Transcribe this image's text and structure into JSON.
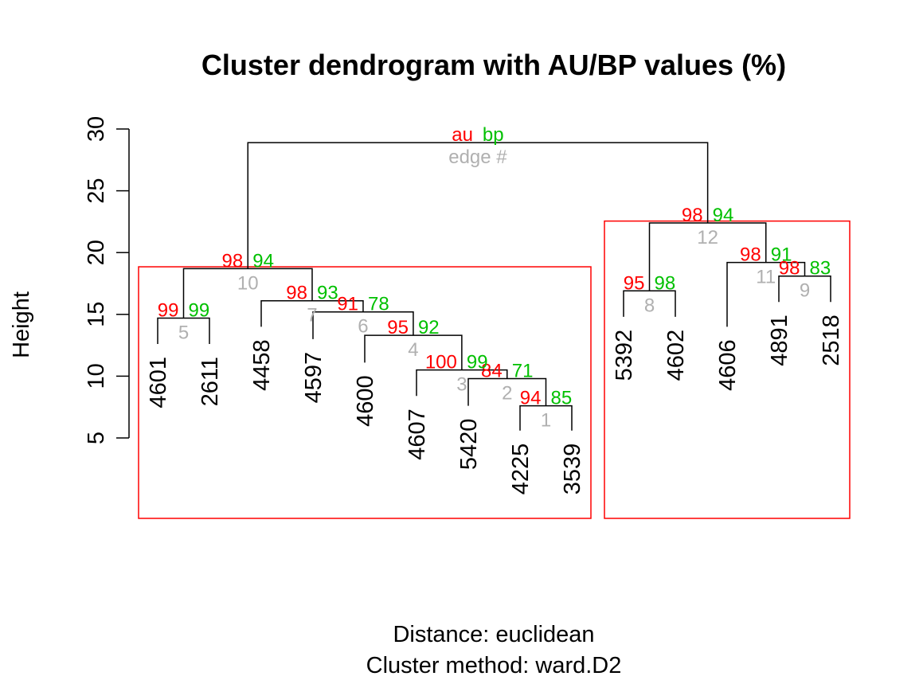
{
  "chart_data": {
    "type": "dendrogram",
    "title": "Cluster dendrogram with AU/BP values (%)",
    "ylabel": "Height",
    "ylim": [
      5,
      30
    ],
    "yticks": [
      5,
      10,
      15,
      20,
      25,
      30
    ],
    "subtitle_lines": [
      "Distance:  euclidean",
      "Cluster method: ward.D2"
    ],
    "legend": {
      "au": "au",
      "bp": "bp",
      "edge": "edge #"
    },
    "colors": {
      "au": "#ff0000",
      "bp": "#00c000",
      "edge": "#b0b0b0",
      "rect": "#ff0000",
      "lines": "#000000"
    },
    "leaves": [
      "4601",
      "2611",
      "4458",
      "4597",
      "4600",
      "4607",
      "5420",
      "4225",
      "3539",
      "5392",
      "4602",
      "4606",
      "4891",
      "2518"
    ],
    "leaf_heights": [
      12.6,
      12.6,
      14.0,
      13.0,
      11.1,
      8.4,
      7.6,
      5.6,
      5.6,
      14.8,
      14.8,
      14.0,
      16.0,
      16.0
    ],
    "merges": [
      {
        "edge": "1",
        "left": "L7",
        "right": "L8",
        "height": 7.6,
        "au": "94",
        "bp": "85"
      },
      {
        "edge": "2",
        "left": "L6",
        "right": "N1",
        "height": 9.8,
        "au": "84",
        "bp": "71"
      },
      {
        "edge": "3",
        "left": "L5",
        "right": "N2",
        "height": 10.5,
        "au": "100",
        "bp": "99"
      },
      {
        "edge": "4",
        "left": "L4",
        "right": "N3",
        "height": 13.3,
        "au": "95",
        "bp": "92"
      },
      {
        "edge": "5",
        "left": "L0",
        "right": "L1",
        "height": 14.7,
        "au": "99",
        "bp": "99"
      },
      {
        "edge": "6",
        "left": "L3",
        "right": "N4",
        "height": 15.2,
        "au": "91",
        "bp": "78"
      },
      {
        "edge": "7",
        "left": "L2",
        "right": "N6",
        "height": 16.1,
        "au": "98",
        "bp": "93"
      },
      {
        "edge": "8",
        "left": "L9",
        "right": "L10",
        "height": 16.9,
        "au": "95",
        "bp": "98"
      },
      {
        "edge": "9",
        "left": "L12",
        "right": "L13",
        "height": 18.1,
        "au": "98",
        "bp": "83"
      },
      {
        "edge": "10",
        "left": "N5",
        "right": "N7",
        "height": 18.7,
        "au": "98",
        "bp": "94"
      },
      {
        "edge": "11",
        "left": "L11",
        "right": "N9",
        "height": 19.2,
        "au": "98",
        "bp": "91"
      },
      {
        "edge": "12",
        "left": "N8",
        "right": "N11",
        "height": 22.4,
        "au": "98",
        "bp": "94"
      },
      {
        "edge": "",
        "left": "N10",
        "right": "N12",
        "height": 28.9,
        "au": "au",
        "bp": "bp"
      }
    ],
    "highlighted_clusters": [
      {
        "leaves": [
          "4601",
          "2611",
          "4458",
          "4597",
          "4600",
          "4607",
          "5420",
          "4225",
          "3539"
        ]
      },
      {
        "leaves": [
          "5392",
          "4602",
          "4606",
          "4891",
          "2518"
        ]
      }
    ]
  }
}
